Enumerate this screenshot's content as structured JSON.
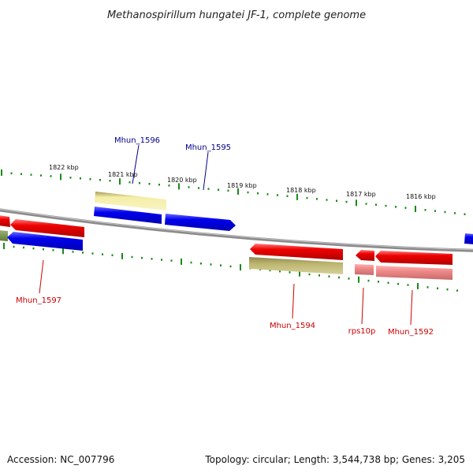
{
  "title": "Methanospirillum hungatei JF-1, complete genome",
  "ticks": [
    {
      "label": "1822 kbp"
    },
    {
      "label": "1821 kbp"
    },
    {
      "label": "1820 kbp"
    },
    {
      "label": "1819 kbp"
    },
    {
      "label": "1818 kbp"
    },
    {
      "label": "1817 kbp"
    },
    {
      "label": "1816 kbp"
    }
  ],
  "genes": [
    {
      "name": "Mhun_1596",
      "strand": "forward",
      "color": "#00008b"
    },
    {
      "name": "Mhun_1595",
      "strand": "forward",
      "color": "#00008b"
    },
    {
      "name": "Mhun_1597",
      "strand": "reverse",
      "color": "#cc0000"
    },
    {
      "name": "Mhun_1594",
      "strand": "reverse",
      "color": "#cc0000"
    },
    {
      "name": "rps10p",
      "strand": "reverse",
      "color": "#cc0000"
    },
    {
      "name": "Mhun_1592",
      "strand": "reverse",
      "color": "#cc0000"
    }
  ],
  "colors": {
    "forward_cds": "#0000ee",
    "reverse_cds": "#ee0000",
    "forward_gene": "#e8e29a",
    "reverse_gene": "#b9b36a",
    "rna": "#ee8888",
    "backbone": "#888888",
    "ticks": "#1a8a1a"
  },
  "footer": {
    "accession": "Accession: NC_007796",
    "summary": "Topology: circular; Length: 3,544,738 bp; Genes: 3,205"
  }
}
